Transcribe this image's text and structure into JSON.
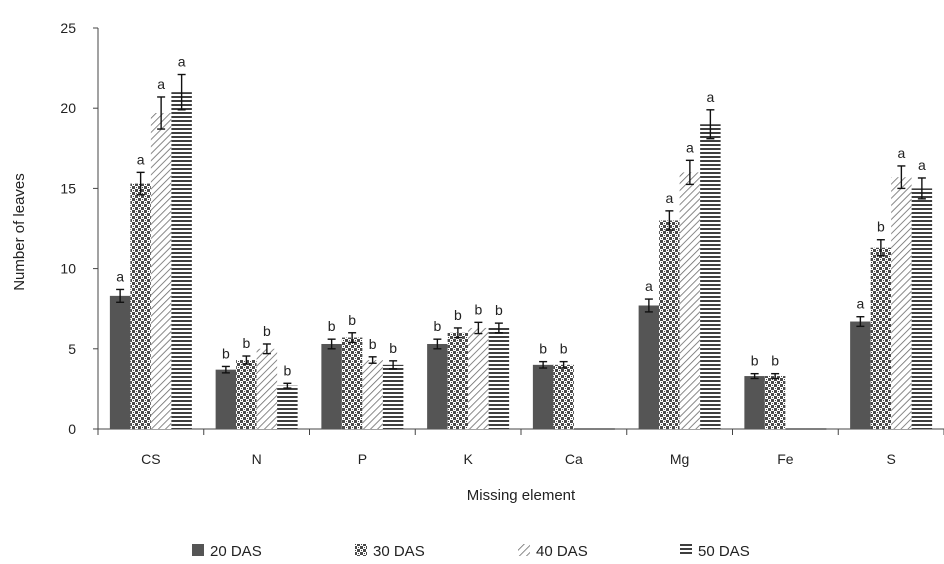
{
  "chart_data": {
    "type": "bar",
    "xlabel": "Missing element",
    "ylabel": "Number of leaves",
    "ylim": [
      0,
      25
    ],
    "yticks": [
      "0",
      "5",
      "10",
      "15",
      "20",
      "25"
    ],
    "grid": false,
    "legend_position": "bottom",
    "categories": [
      "CS",
      "N",
      "P",
      "K",
      "Ca",
      "Mg",
      "Fe",
      "S"
    ],
    "series": [
      {
        "name": "20 DAS",
        "pattern": "solid",
        "color": "#555555",
        "values": [
          8.3,
          3.7,
          5.3,
          5.3,
          4.0,
          7.7,
          3.3,
          6.7
        ],
        "errors": [
          0.4,
          0.2,
          0.3,
          0.3,
          0.2,
          0.4,
          0.15,
          0.3
        ],
        "letters": [
          "a",
          "b",
          "b",
          "b",
          "b",
          "a",
          "b",
          "a"
        ]
      },
      {
        "name": "30 DAS",
        "pattern": "checker",
        "color": "#555555",
        "values": [
          15.3,
          4.3,
          5.7,
          6.0,
          4.0,
          13.0,
          3.3,
          11.3
        ],
        "errors": [
          0.7,
          0.25,
          0.3,
          0.3,
          0.2,
          0.6,
          0.15,
          0.5
        ],
        "letters": [
          "a",
          "b",
          "b",
          "b",
          "b",
          "a",
          "b",
          "b"
        ]
      },
      {
        "name": "40 DAS",
        "pattern": "diagonal",
        "color": "#555555",
        "values": [
          19.7,
          5.0,
          4.3,
          6.3,
          0,
          16.0,
          0,
          15.7
        ],
        "errors": [
          1.0,
          0.3,
          0.2,
          0.35,
          0,
          0.75,
          0,
          0.7
        ],
        "letters": [
          "a",
          "b",
          "b",
          "b",
          "",
          "a",
          "",
          "a"
        ]
      },
      {
        "name": "50 DAS",
        "pattern": "horizontal",
        "color": "#555555",
        "values": [
          21.0,
          2.7,
          4.0,
          6.3,
          0,
          19.0,
          0,
          15.0
        ],
        "errors": [
          1.1,
          0.15,
          0.25,
          0.3,
          0,
          0.9,
          0,
          0.65
        ],
        "letters": [
          "a",
          "b",
          "b",
          "b",
          "",
          "a",
          "",
          "a"
        ]
      }
    ]
  }
}
